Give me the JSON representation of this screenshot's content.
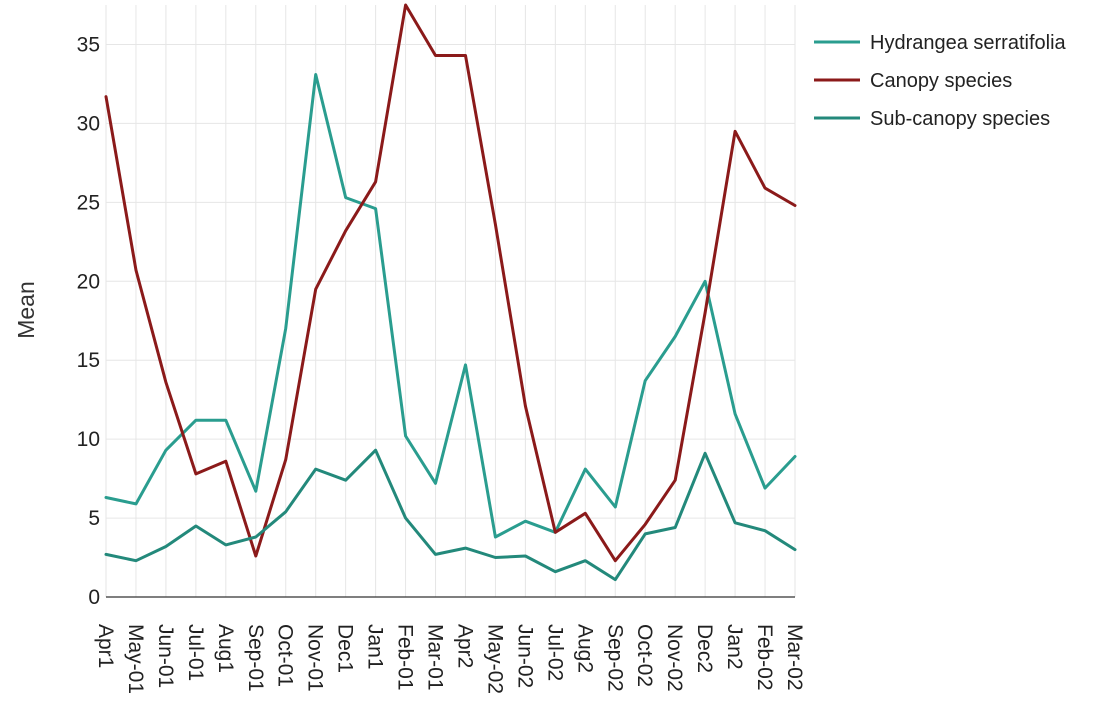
{
  "chart_data": {
    "type": "line",
    "ylabel": "Mean",
    "xlabel": "",
    "ylim": [
      0,
      37.5
    ],
    "yticks": [
      0,
      5,
      10,
      15,
      20,
      25,
      30,
      35
    ],
    "grid": true,
    "legend_position": "top-right",
    "categories": [
      "Apr1",
      "May-01",
      "Jun-01",
      "Jul-01",
      "Aug1",
      "Sep-01",
      "Oct-01",
      "Nov-01",
      "Dec1",
      "Jan1",
      "Feb-01",
      "Mar-01",
      "Apr2",
      "May-02",
      "Jun-02",
      "Jul-02",
      "Aug2",
      "Sep-02",
      "Oct-02",
      "Nov-02",
      "Dec2",
      "Jan2",
      "Feb-02",
      "Mar-02"
    ],
    "series": [
      {
        "name": "Hydrangea serratifolia",
        "color": "#2a9d8f",
        "values": [
          6.3,
          5.9,
          9.3,
          11.2,
          11.2,
          6.7,
          17.0,
          33.1,
          25.3,
          24.6,
          10.2,
          7.2,
          14.7,
          3.8,
          4.8,
          4.1,
          8.1,
          5.7,
          13.7,
          16.5,
          20.0,
          11.6,
          6.9,
          8.9
        ]
      },
      {
        "name": "Canopy species",
        "color": "#8b1a1a",
        "values": [
          31.7,
          20.7,
          13.6,
          7.8,
          8.6,
          2.6,
          8.7,
          19.5,
          23.2,
          26.3,
          37.5,
          34.3,
          34.3,
          23.6,
          12.1,
          4.1,
          5.3,
          2.3,
          4.6,
          7.4,
          18.0,
          29.5,
          25.9,
          24.8
        ]
      },
      {
        "name": "Sub-canopy species",
        "color": "#23897b",
        "values": [
          2.7,
          2.3,
          3.2,
          4.5,
          3.3,
          3.8,
          5.4,
          8.1,
          7.4,
          9.3,
          5.0,
          2.7,
          3.1,
          2.5,
          2.6,
          1.6,
          2.3,
          1.1,
          4.0,
          4.4,
          9.1,
          4.7,
          4.2,
          3.0
        ]
      }
    ]
  }
}
